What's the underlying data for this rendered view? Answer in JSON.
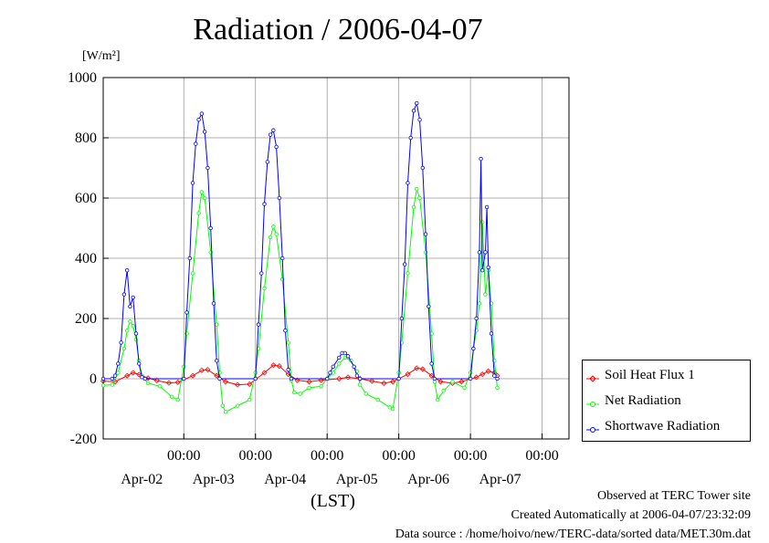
{
  "title": "Radiation / 2006-04-07",
  "y_unit": "[W/m²]",
  "x_axis_label": "(LST)",
  "footer": {
    "observed": "Observed at TERC Tower site",
    "created": "Created Automatically at 2006-04-07/23:32:09",
    "source": "Data source : /home/hoivo/new/TERC-data/sorted  data/MET.30m.dat"
  },
  "chart_data": {
    "type": "line",
    "title": "Radiation / 2006-04-07",
    "ylabel": "[W/m²]",
    "xlabel": "(LST)",
    "ylim": [
      -200,
      1000
    ],
    "yticks": [
      -200,
      0,
      200,
      400,
      600,
      800,
      1000
    ],
    "xlim": [
      "2006-04-01T09:00",
      "2006-04-07T21:00"
    ],
    "xticks": [
      {
        "time": "2006-04-02T12:00",
        "label": "00:00",
        "date": "Apr-02"
      },
      {
        "time": "2006-04-03T12:00",
        "label": "00:00",
        "date": "Apr-03"
      },
      {
        "time": "2006-04-04T12:00",
        "label": "00:00",
        "date": "Apr-04"
      },
      {
        "time": "2006-04-05T12:00",
        "label": "00:00",
        "date": "Apr-05"
      },
      {
        "time": "2006-04-06T12:00",
        "label": "00:00",
        "date": "Apr-06"
      },
      {
        "time": "2006-04-07T12:00",
        "label": "00:00",
        "date": "Apr-07"
      }
    ],
    "grid": true,
    "legend_position": "right",
    "series": [
      {
        "name": "Soil Heat Flux 1",
        "color": "#ff0000",
        "marker": "diamond",
        "points": [
          [
            "2006-04-01T09:00",
            -8
          ],
          [
            "2006-04-01T13:00",
            -10
          ],
          [
            "2006-04-01T17:00",
            10
          ],
          [
            "2006-04-01T19:00",
            20
          ],
          [
            "2006-04-01T21:00",
            14
          ],
          [
            "2006-04-02T00:00",
            2
          ],
          [
            "2006-04-02T03:00",
            -6
          ],
          [
            "2006-04-02T07:00",
            -14
          ],
          [
            "2006-04-02T10:00",
            -12
          ],
          [
            "2006-04-02T15:00",
            10
          ],
          [
            "2006-04-02T18:00",
            28
          ],
          [
            "2006-04-02T20:00",
            30
          ],
          [
            "2006-04-02T23:00",
            10
          ],
          [
            "2006-04-03T02:00",
            -10
          ],
          [
            "2006-04-03T06:00",
            -20
          ],
          [
            "2006-04-03T10:00",
            -18
          ],
          [
            "2006-04-03T15:00",
            20
          ],
          [
            "2006-04-03T18:00",
            45
          ],
          [
            "2006-04-03T20:00",
            42
          ],
          [
            "2006-04-03T23:00",
            15
          ],
          [
            "2006-04-04T02:00",
            -5
          ],
          [
            "2006-04-04T06:00",
            -10
          ],
          [
            "2006-04-04T10:00",
            -5
          ],
          [
            "2006-04-04T16:00",
            0
          ],
          [
            "2006-04-04T19:00",
            5
          ],
          [
            "2006-04-04T23:00",
            0
          ],
          [
            "2006-04-05T03:00",
            -8
          ],
          [
            "2006-04-05T07:00",
            -15
          ],
          [
            "2006-04-05T10:00",
            -10
          ],
          [
            "2006-04-05T15:00",
            15
          ],
          [
            "2006-04-05T18:00",
            35
          ],
          [
            "2006-04-05T20:00",
            32
          ],
          [
            "2006-04-05T23:00",
            10
          ],
          [
            "2006-04-06T02:00",
            -10
          ],
          [
            "2006-04-06T06:00",
            -15
          ],
          [
            "2006-04-06T09:00",
            -10
          ],
          [
            "2006-04-06T14:00",
            5
          ],
          [
            "2006-04-06T16:00",
            15
          ],
          [
            "2006-04-06T18:00",
            25
          ],
          [
            "2006-04-06T20:00",
            20
          ],
          [
            "2006-04-06T21:00",
            10
          ]
        ]
      },
      {
        "name": "Net Radiation",
        "color": "#00ff00",
        "marker": "circle",
        "points": [
          [
            "2006-04-01T09:00",
            -22
          ],
          [
            "2006-04-01T12:00",
            -20
          ],
          [
            "2006-04-01T14:00",
            20
          ],
          [
            "2006-04-01T16:00",
            100
          ],
          [
            "2006-04-01T17:00",
            160
          ],
          [
            "2006-04-01T18:00",
            190
          ],
          [
            "2006-04-01T19:00",
            175
          ],
          [
            "2006-04-01T20:00",
            130
          ],
          [
            "2006-04-01T21:00",
            60
          ],
          [
            "2006-04-01T22:00",
            10
          ],
          [
            "2006-04-02T00:00",
            -15
          ],
          [
            "2006-04-02T04:00",
            -25
          ],
          [
            "2006-04-02T08:00",
            -60
          ],
          [
            "2006-04-02T10:00",
            -70
          ],
          [
            "2006-04-02T12:00",
            40
          ],
          [
            "2006-04-02T13:00",
            150
          ],
          [
            "2006-04-02T15:00",
            350
          ],
          [
            "2006-04-02T17:00",
            550
          ],
          [
            "2006-04-02T18:00",
            620
          ],
          [
            "2006-04-02T19:00",
            600
          ],
          [
            "2006-04-02T21:00",
            420
          ],
          [
            "2006-04-02T23:00",
            180
          ],
          [
            "2006-04-03T00:00",
            20
          ],
          [
            "2006-04-03T01:00",
            -90
          ],
          [
            "2006-04-03T02:00",
            -110
          ],
          [
            "2006-04-03T06:00",
            -90
          ],
          [
            "2006-04-03T10:00",
            -70
          ],
          [
            "2006-04-03T12:00",
            20
          ],
          [
            "2006-04-03T13:00",
            100
          ],
          [
            "2006-04-03T15:00",
            300
          ],
          [
            "2006-04-03T17:00",
            470
          ],
          [
            "2006-04-03T18:00",
            505
          ],
          [
            "2006-04-03T19:00",
            480
          ],
          [
            "2006-04-03T21:00",
            330
          ],
          [
            "2006-04-03T23:00",
            120
          ],
          [
            "2006-04-04T00:00",
            -5
          ],
          [
            "2006-04-04T01:00",
            -45
          ],
          [
            "2006-04-04T03:00",
            -50
          ],
          [
            "2006-04-04T06:00",
            -30
          ],
          [
            "2006-04-04T10:00",
            -25
          ],
          [
            "2006-04-04T12:00",
            0
          ],
          [
            "2006-04-04T14:00",
            20
          ],
          [
            "2006-04-04T16:00",
            50
          ],
          [
            "2006-04-04T18:00",
            70
          ],
          [
            "2006-04-04T20:00",
            60
          ],
          [
            "2006-04-04T22:00",
            25
          ],
          [
            "2006-04-04T23:00",
            -20
          ],
          [
            "2006-04-05T01:00",
            -50
          ],
          [
            "2006-04-05T05:00",
            -70
          ],
          [
            "2006-04-05T09:00",
            -95
          ],
          [
            "2006-04-05T10:00",
            -100
          ],
          [
            "2006-04-05T12:00",
            20
          ],
          [
            "2006-04-05T13:00",
            120
          ],
          [
            "2006-04-05T15:00",
            350
          ],
          [
            "2006-04-05T17:00",
            570
          ],
          [
            "2006-04-05T18:00",
            630
          ],
          [
            "2006-04-05T19:00",
            600
          ],
          [
            "2006-04-05T21:00",
            420
          ],
          [
            "2006-04-05T23:00",
            150
          ],
          [
            "2006-04-06T00:00",
            -10
          ],
          [
            "2006-04-06T01:00",
            -70
          ],
          [
            "2006-04-06T03:00",
            -40
          ],
          [
            "2006-04-06T06:00",
            -10
          ],
          [
            "2006-04-06T10:00",
            -30
          ],
          [
            "2006-04-06T12:00",
            20
          ],
          [
            "2006-04-06T13:00",
            100
          ],
          [
            "2006-04-06T14:00",
            160
          ],
          [
            "2006-04-06T15:00",
            250
          ],
          [
            "2006-04-06T16:00",
            520
          ],
          [
            "2006-04-06T17:00",
            280
          ],
          [
            "2006-04-06T18:00",
            360
          ],
          [
            "2006-04-06T19:00",
            250
          ],
          [
            "2006-04-06T20:00",
            60
          ],
          [
            "2006-04-06T21:00",
            -30
          ]
        ]
      },
      {
        "name": "Shortwave Radiation",
        "color": "#0000ff",
        "marker": "circle",
        "points": [
          [
            "2006-04-01T09:00",
            0
          ],
          [
            "2006-04-01T12:00",
            0
          ],
          [
            "2006-04-01T13:00",
            10
          ],
          [
            "2006-04-01T14:00",
            50
          ],
          [
            "2006-04-01T15:00",
            120
          ],
          [
            "2006-04-01T16:00",
            280
          ],
          [
            "2006-04-01T17:00",
            360
          ],
          [
            "2006-04-01T18:00",
            240
          ],
          [
            "2006-04-01T19:00",
            270
          ],
          [
            "2006-04-01T20:00",
            150
          ],
          [
            "2006-04-01T21:00",
            50
          ],
          [
            "2006-04-01T22:00",
            5
          ],
          [
            "2006-04-01T23:00",
            0
          ],
          [
            "2006-04-02T12:00",
            0
          ],
          [
            "2006-04-02T13:00",
            220
          ],
          [
            "2006-04-02T14:00",
            400
          ],
          [
            "2006-04-02T15:00",
            650
          ],
          [
            "2006-04-02T16:00",
            780
          ],
          [
            "2006-04-02T17:00",
            860
          ],
          [
            "2006-04-02T18:00",
            880
          ],
          [
            "2006-04-02T19:00",
            820
          ],
          [
            "2006-04-02T20:00",
            700
          ],
          [
            "2006-04-02T21:00",
            500
          ],
          [
            "2006-04-02T22:00",
            250
          ],
          [
            "2006-04-02T23:00",
            60
          ],
          [
            "2006-04-03T00:00",
            0
          ],
          [
            "2006-04-03T12:00",
            0
          ],
          [
            "2006-04-03T13:00",
            180
          ],
          [
            "2006-04-03T14:00",
            350
          ],
          [
            "2006-04-03T15:00",
            580
          ],
          [
            "2006-04-03T16:00",
            720
          ],
          [
            "2006-04-03T17:00",
            810
          ],
          [
            "2006-04-03T18:00",
            825
          ],
          [
            "2006-04-03T19:00",
            770
          ],
          [
            "2006-04-03T20:00",
            600
          ],
          [
            "2006-04-03T21:00",
            400
          ],
          [
            "2006-04-03T22:00",
            160
          ],
          [
            "2006-04-03T23:00",
            30
          ],
          [
            "2006-04-04T00:00",
            0
          ],
          [
            "2006-04-04T12:00",
            0
          ],
          [
            "2006-04-04T13:00",
            20
          ],
          [
            "2006-04-04T14:00",
            40
          ],
          [
            "2006-04-04T16:00",
            70
          ],
          [
            "2006-04-04T17:00",
            85
          ],
          [
            "2006-04-04T18:00",
            85
          ],
          [
            "2006-04-04T19:00",
            75
          ],
          [
            "2006-04-04T21:00",
            40
          ],
          [
            "2006-04-04T22:00",
            10
          ],
          [
            "2006-04-04T23:00",
            0
          ],
          [
            "2006-04-05T12:00",
            0
          ],
          [
            "2006-04-05T13:00",
            200
          ],
          [
            "2006-04-05T14:00",
            380
          ],
          [
            "2006-04-05T15:00",
            650
          ],
          [
            "2006-04-05T16:00",
            800
          ],
          [
            "2006-04-05T17:00",
            890
          ],
          [
            "2006-04-05T18:00",
            915
          ],
          [
            "2006-04-05T19:00",
            860
          ],
          [
            "2006-04-05T20:00",
            700
          ],
          [
            "2006-04-05T21:00",
            480
          ],
          [
            "2006-04-05T22:00",
            240
          ],
          [
            "2006-04-05T23:00",
            50
          ],
          [
            "2006-04-06T00:00",
            0
          ],
          [
            "2006-04-06T12:00",
            0
          ],
          [
            "2006-04-06T13:00",
            100
          ],
          [
            "2006-04-06T14:00",
            200
          ],
          [
            "2006-04-06T15:00",
            420
          ],
          [
            "2006-04-06T15:30",
            730
          ],
          [
            "2006-04-06T16:00",
            360
          ],
          [
            "2006-04-06T17:00",
            420
          ],
          [
            "2006-04-06T17:30",
            570
          ],
          [
            "2006-04-06T18:00",
            370
          ],
          [
            "2006-04-06T19:00",
            150
          ],
          [
            "2006-04-06T20:00",
            10
          ],
          [
            "2006-04-06T21:00",
            0
          ]
        ]
      }
    ]
  }
}
